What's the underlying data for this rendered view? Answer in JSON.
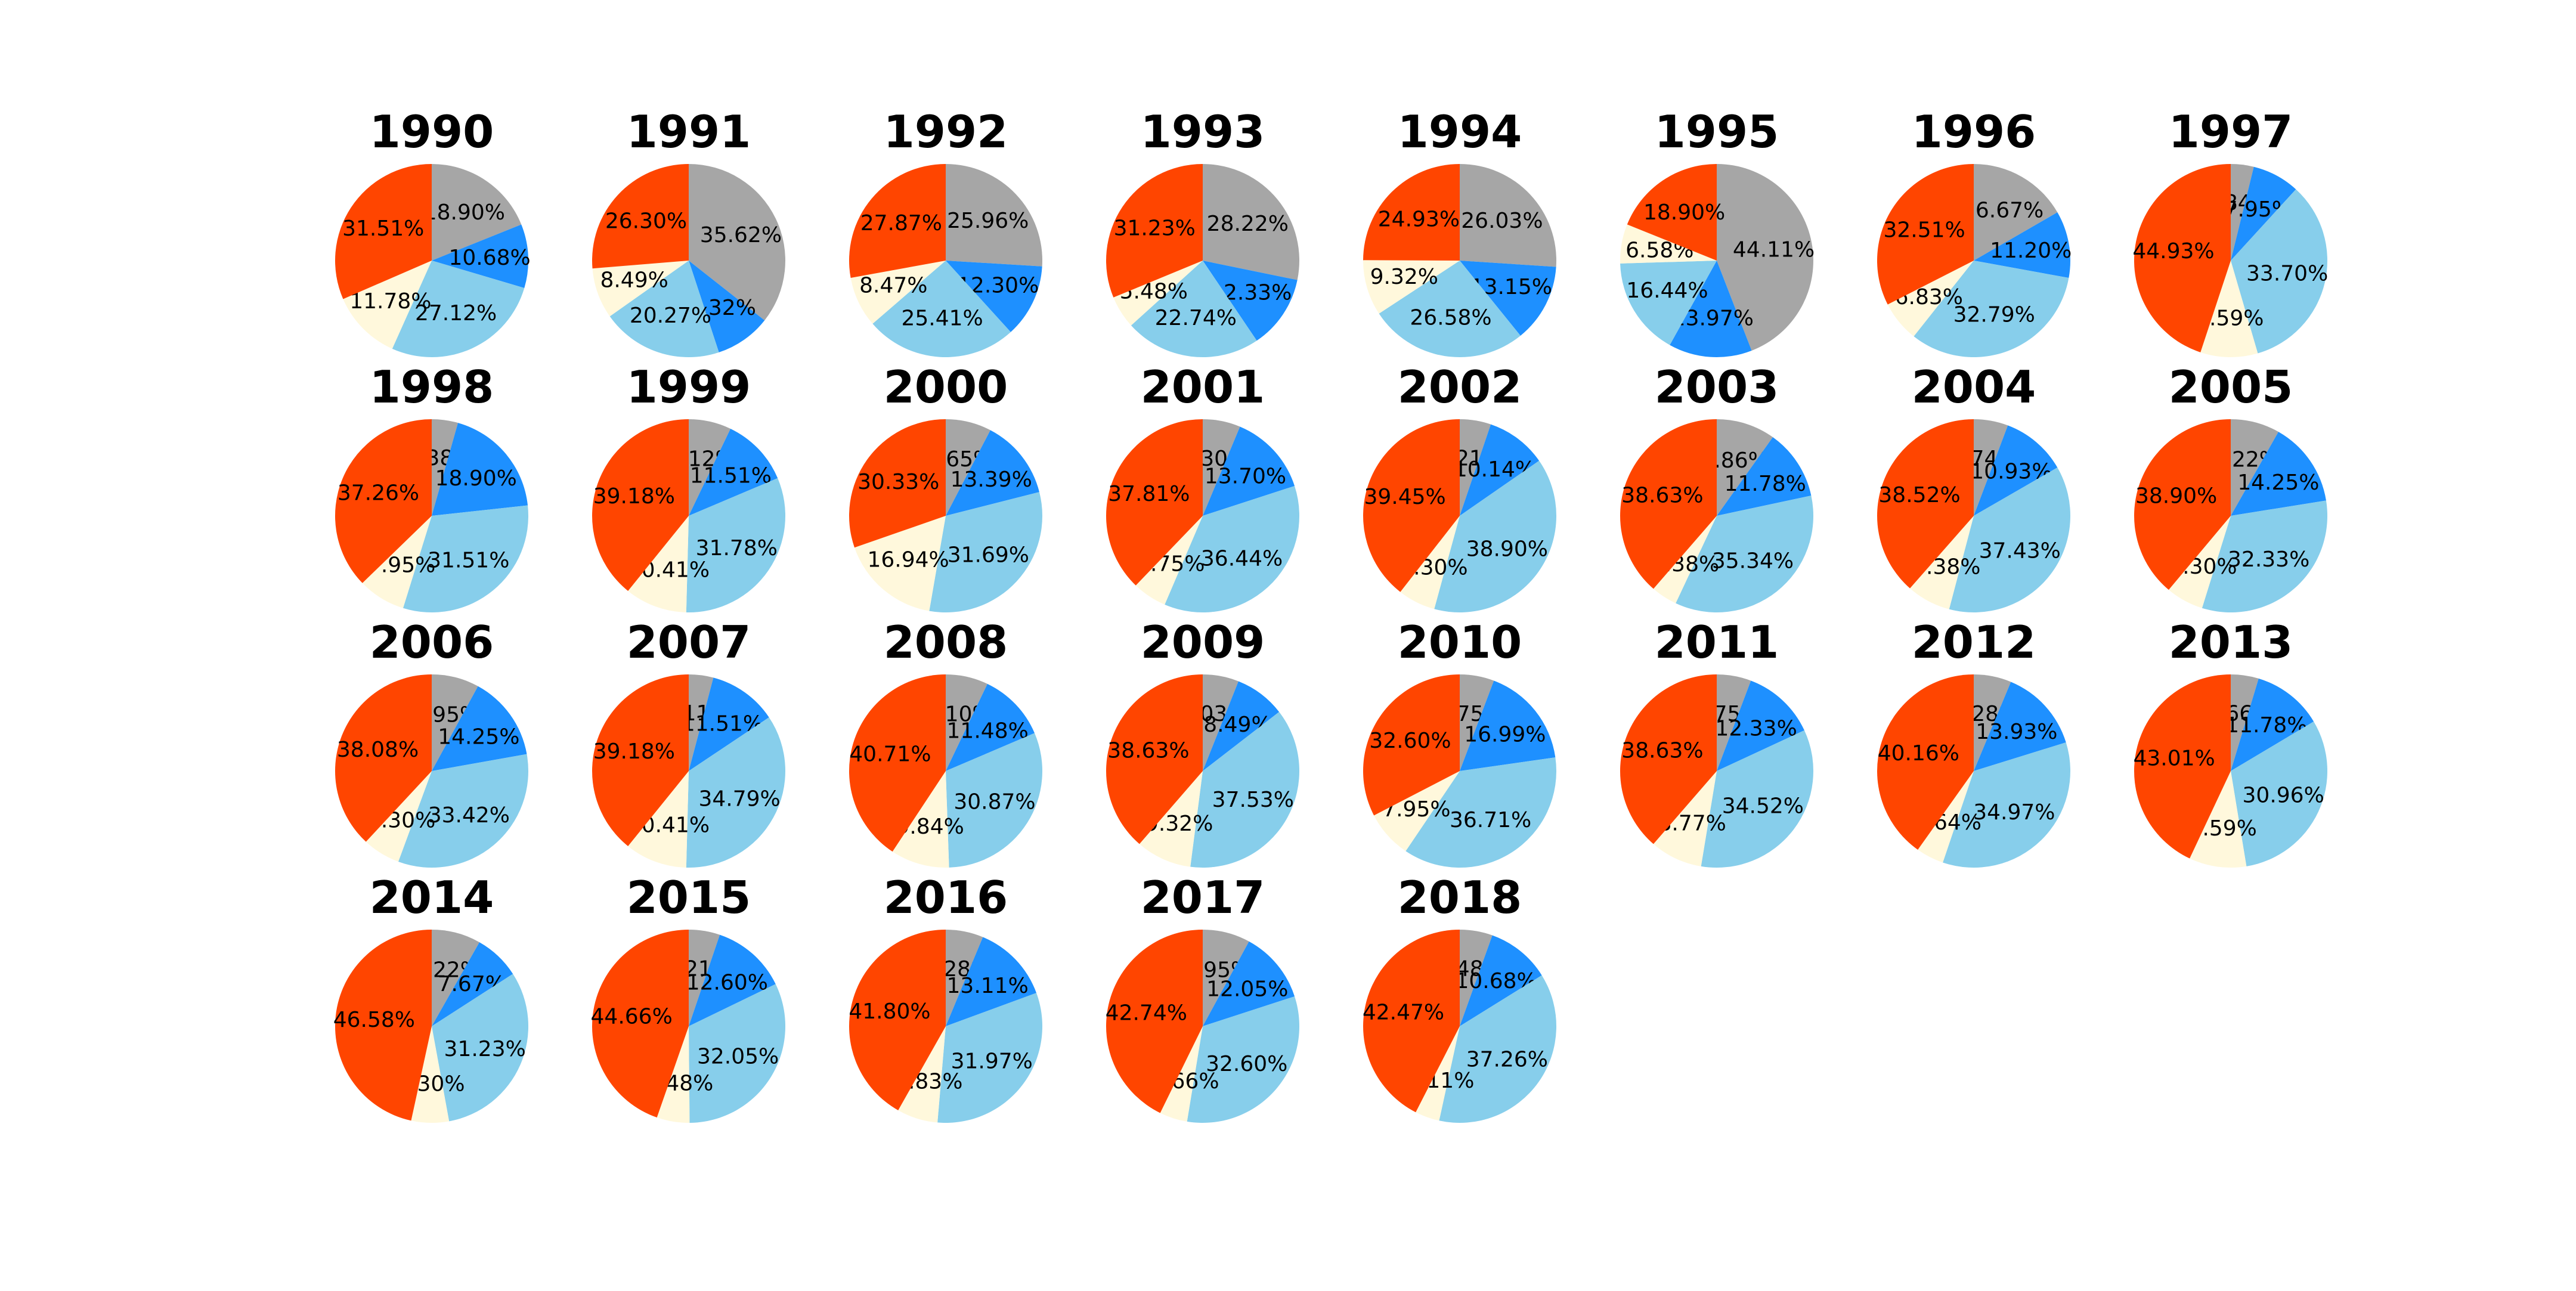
{
  "colors": [
    "#a6a6a6",
    "#1e90ff",
    "#87ceeb",
    "#fff8dc",
    "#ff4500"
  ],
  "chart_data": [
    {
      "type": "pie",
      "title": "1990",
      "values": [
        18.9,
        10.68,
        27.12,
        11.78,
        31.51
      ],
      "labels": [
        "18.90%",
        "10.68%",
        "27.12%",
        "11.78%",
        "31.51%"
      ]
    },
    {
      "type": "pie",
      "title": "1991",
      "values": [
        35.62,
        9.32,
        20.27,
        8.49,
        26.3
      ],
      "labels": [
        "35.62%",
        "9.32%",
        "20.27%",
        "8.49%",
        "26.30%"
      ]
    },
    {
      "type": "pie",
      "title": "1992",
      "values": [
        25.96,
        12.3,
        25.41,
        8.47,
        27.87
      ],
      "labels": [
        "25.96%",
        "12.30%",
        "25.41%",
        "8.47%",
        "27.87%"
      ]
    },
    {
      "type": "pie",
      "title": "1993",
      "values": [
        28.22,
        12.33,
        22.74,
        5.48,
        31.23
      ],
      "labels": [
        "28.22%",
        "12.33%",
        "22.74%",
        "5.48%",
        "31.23%"
      ]
    },
    {
      "type": "pie",
      "title": "1994",
      "values": [
        26.03,
        13.15,
        26.58,
        9.32,
        24.93
      ],
      "labels": [
        "26.03%",
        "13.15%",
        "26.58%",
        "9.32%",
        "24.93%"
      ]
    },
    {
      "type": "pie",
      "title": "1995",
      "values": [
        44.11,
        13.97,
        16.44,
        6.58,
        18.9
      ],
      "labels": [
        "44.11%",
        "13.97%",
        "16.44%",
        "6.58%",
        "18.90%"
      ]
    },
    {
      "type": "pie",
      "title": "1996",
      "values": [
        16.67,
        11.2,
        32.79,
        6.83,
        32.51
      ],
      "labels": [
        "16.67%",
        "11.20%",
        "32.79%",
        "6.83%",
        "32.51%"
      ]
    },
    {
      "type": "pie",
      "title": "1997",
      "values": [
        3.84,
        7.95,
        33.7,
        9.59,
        44.93
      ],
      "labels": [
        "3.84%",
        "7.95%",
        "33.70%",
        "9.59%",
        "44.93%"
      ]
    },
    {
      "type": "pie",
      "title": "1998",
      "values": [
        4.38,
        18.9,
        31.51,
        7.95,
        37.26
      ],
      "labels": [
        "4.38%",
        "18.90%",
        "31.51%",
        "7.95%",
        "37.26%"
      ]
    },
    {
      "type": "pie",
      "title": "1999",
      "values": [
        7.12,
        11.51,
        31.78,
        10.41,
        39.18
      ],
      "labels": [
        "7.12%",
        "11.51%",
        "31.78%",
        "10.41%",
        "39.18%"
      ]
    },
    {
      "type": "pie",
      "title": "2000",
      "values": [
        7.65,
        13.39,
        31.69,
        16.94,
        30.33
      ],
      "labels": [
        "7.65%",
        "13.39%",
        "31.69%",
        "16.94%",
        "30.33%"
      ]
    },
    {
      "type": "pie",
      "title": "2001",
      "values": [
        6.3,
        13.7,
        36.44,
        5.75,
        37.81
      ],
      "labels": [
        "6.30%",
        "13.70%",
        "36.44%",
        "5.75%",
        "37.81%"
      ]
    },
    {
      "type": "pie",
      "title": "2002",
      "values": [
        5.21,
        10.14,
        38.9,
        6.3,
        39.45
      ],
      "labels": [
        "5.21%",
        "10.14%",
        "38.90%",
        "6.30%",
        "39.45%"
      ]
    },
    {
      "type": "pie",
      "title": "2003",
      "values": [
        9.86,
        11.78,
        35.34,
        4.38,
        38.63
      ],
      "labels": [
        "9.86%",
        "11.78%",
        "35.34%",
        "4.38%",
        "38.63%"
      ]
    },
    {
      "type": "pie",
      "title": "2004",
      "values": [
        5.74,
        10.93,
        37.43,
        7.38,
        38.52
      ],
      "labels": [
        "5.74%",
        "10.93%",
        "37.43%",
        "7.38%",
        "38.52%"
      ]
    },
    {
      "type": "pie",
      "title": "2005",
      "values": [
        8.22,
        14.25,
        32.33,
        6.3,
        38.9
      ],
      "labels": [
        "8.22%",
        "14.25%",
        "32.33%",
        "6.30%",
        "38.90%"
      ]
    },
    {
      "type": "pie",
      "title": "2006",
      "values": [
        7.95,
        14.25,
        33.42,
        6.3,
        38.08
      ],
      "labels": [
        "7.95%",
        "14.25%",
        "33.42%",
        "6.30%",
        "38.08%"
      ]
    },
    {
      "type": "pie",
      "title": "2007",
      "values": [
        4.11,
        11.51,
        34.79,
        10.41,
        39.18
      ],
      "labels": [
        "4.11%",
        "11.51%",
        "34.79%",
        "10.41%",
        "39.18%"
      ]
    },
    {
      "type": "pie",
      "title": "2008",
      "values": [
        7.1,
        11.48,
        30.87,
        9.84,
        40.71
      ],
      "labels": [
        "7.10%",
        "11.48%",
        "30.87%",
        "9.84%",
        "40.71%"
      ]
    },
    {
      "type": "pie",
      "title": "2009",
      "values": [
        6.03,
        8.49,
        37.53,
        9.32,
        38.63
      ],
      "labels": [
        "6.03%",
        "8.49%",
        "37.53%",
        "9.32%",
        "38.63%"
      ]
    },
    {
      "type": "pie",
      "title": "2010",
      "values": [
        5.75,
        16.99,
        36.71,
        7.95,
        32.6
      ],
      "labels": [
        "5.75%",
        "16.99%",
        "36.71%",
        "7.95%",
        "32.60%"
      ]
    },
    {
      "type": "pie",
      "title": "2011",
      "values": [
        5.75,
        12.33,
        34.52,
        8.77,
        38.63
      ],
      "labels": [
        "5.75%",
        "12.33%",
        "34.52%",
        "8.77%",
        "38.63%"
      ]
    },
    {
      "type": "pie",
      "title": "2012",
      "values": [
        6.28,
        13.93,
        34.97,
        4.64,
        40.16
      ],
      "labels": [
        "6.28%",
        "13.93%",
        "34.97%",
        "4.64%",
        "40.16%"
      ]
    },
    {
      "type": "pie",
      "title": "2013",
      "values": [
        4.66,
        11.78,
        30.96,
        9.59,
        43.01
      ],
      "labels": [
        "4.66%",
        "11.78%",
        "30.96%",
        "9.59%",
        "43.01%"
      ]
    },
    {
      "type": "pie",
      "title": "2014",
      "values": [
        8.22,
        7.67,
        31.23,
        6.3,
        46.58
      ],
      "labels": [
        "8.22%",
        "7.67%",
        "31.23%",
        "6.30%",
        "46.58%"
      ]
    },
    {
      "type": "pie",
      "title": "2015",
      "values": [
        5.21,
        12.6,
        32.05,
        5.48,
        44.66
      ],
      "labels": [
        "5.21%",
        "12.60%",
        "32.05%",
        "5.48%",
        "44.66%"
      ]
    },
    {
      "type": "pie",
      "title": "2016",
      "values": [
        6.28,
        13.11,
        31.97,
        6.83,
        41.8
      ],
      "labels": [
        "6.28%",
        "13.11%",
        "31.97%",
        "6.83%",
        "41.80%"
      ]
    },
    {
      "type": "pie",
      "title": "2017",
      "values": [
        7.95,
        12.05,
        32.6,
        4.66,
        42.74
      ],
      "labels": [
        "7.95%",
        "12.05%",
        "32.60%",
        "4.66%",
        "42.74%"
      ]
    },
    {
      "type": "pie",
      "title": "2018",
      "values": [
        5.48,
        10.68,
        37.26,
        4.11,
        42.47
      ],
      "labels": [
        "5.48%",
        "10.68%",
        "37.26%",
        "4.11%",
        "42.47%"
      ]
    }
  ]
}
